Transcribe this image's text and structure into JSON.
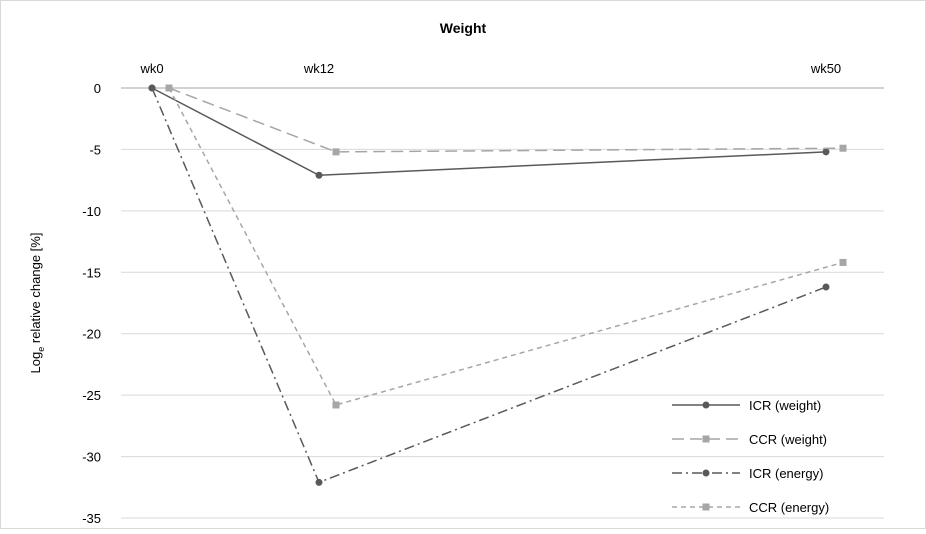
{
  "chart_data": {
    "type": "line",
    "title": "Weight",
    "ylabel_main": "Log",
    "ylabel_sub": "e",
    "ylabel_rest": " relative change [%]",
    "categories": [
      "wk0",
      "wk12",
      "wk50"
    ],
    "ylim": [
      -35,
      0
    ],
    "yticks": [
      0,
      -5,
      -10,
      -15,
      -20,
      -25,
      -30,
      -35
    ],
    "grid": true,
    "legend_position": "bottom-right",
    "series": [
      {
        "name": "ICR (weight)",
        "values": [
          0,
          -7.1,
          -5.2
        ],
        "color": "#595959",
        "marker": "circle",
        "dash": "solid",
        "offset": "left"
      },
      {
        "name": "CCR (weight)",
        "values": [
          0,
          -5.2,
          -4.9
        ],
        "color": "#a6a6a6",
        "marker": "square",
        "dash": "long-dash",
        "offset": "right"
      },
      {
        "name": "ICR (energy)",
        "values": [
          0,
          -32.1,
          -16.2
        ],
        "color": "#595959",
        "marker": "circle",
        "dash": "long-dash-dot",
        "offset": "left"
      },
      {
        "name": "CCR (energy)",
        "values": [
          0,
          -25.8,
          -14.2
        ],
        "color": "#a6a6a6",
        "marker": "square",
        "dash": "short-dash",
        "offset": "right"
      }
    ]
  }
}
